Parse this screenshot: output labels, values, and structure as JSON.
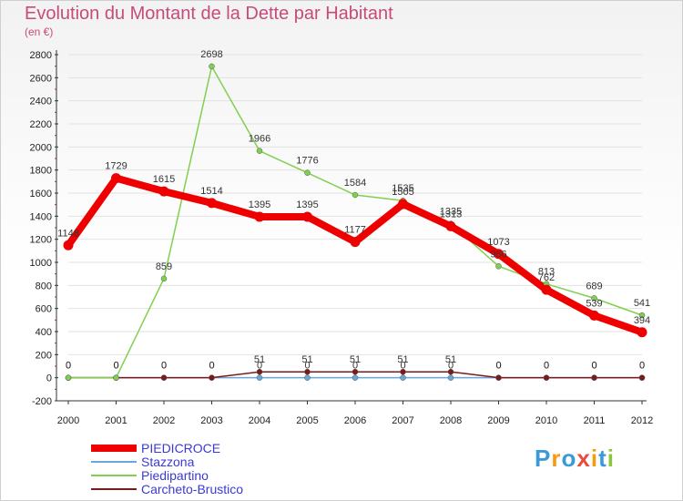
{
  "chart_data": {
    "type": "line",
    "title": "Evolution du Montant de la Dette par Habitant",
    "subtitle": "(en €)",
    "x": [
      "2000",
      "2001",
      "2002",
      "2003",
      "2004",
      "2005",
      "2006",
      "2007",
      "2008",
      "2009",
      "2010",
      "2011",
      "2012"
    ],
    "ylim": [
      -200,
      2800
    ],
    "yticks": [
      "-200",
      "0",
      "200",
      "400",
      "600",
      "800",
      "1000",
      "1200",
      "1400",
      "1600",
      "1800",
      "2000",
      "2200",
      "2400",
      "2600",
      "2800"
    ],
    "series": [
      {
        "name": "PIEDICROCE",
        "color": "#ee0000",
        "values": [
          1148,
          1729,
          1615,
          1514,
          1395,
          1395,
          1177,
          1505,
          1313,
          1073,
          762,
          539,
          394
        ],
        "labels": [
          "1148",
          "1729",
          "1615",
          "1514",
          "1395",
          "1395",
          "1177",
          "1505",
          "1313",
          "1073",
          "762",
          "539",
          "394"
        ]
      },
      {
        "name": "Stazzona",
        "color": "#6aa6d6",
        "values": [
          0,
          0,
          0,
          0,
          0,
          0,
          0,
          0,
          0,
          0,
          0,
          0,
          0
        ],
        "labels": [
          "0",
          "0",
          "0",
          "0",
          "0",
          "0",
          "0",
          "0",
          "0",
          "0",
          "0",
          "0",
          "0"
        ]
      },
      {
        "name": "Piedipartino",
        "color": "#80d050",
        "values": [
          0,
          0,
          859,
          2698,
          1966,
          1776,
          1584,
          1535,
          1335,
          966,
          813,
          689,
          541
        ],
        "labels": [
          "",
          "",
          "859",
          "2698",
          "1966",
          "1776",
          "1584",
          "1535",
          "1335",
          "966",
          "813",
          "689",
          "541"
        ]
      },
      {
        "name": "Carcheto-Brustico",
        "color": "#7a1a1a",
        "values": [
          0,
          0,
          0,
          0,
          51,
          51,
          51,
          51,
          51,
          0,
          0,
          0,
          0
        ],
        "labels": [
          "0",
          "0",
          "0",
          "0",
          "51",
          "51",
          "51",
          "51",
          "51",
          "0",
          "0",
          "0",
          "0"
        ]
      }
    ]
  },
  "logo": {
    "letters": [
      "P",
      "r",
      "o",
      "x",
      "i",
      "t",
      "i"
    ],
    "colors": [
      "#3a9ad9",
      "#f39c12",
      "#3a9ad9",
      "#e74c3c",
      "#f39c12",
      "#3a9ad9",
      "#8cc63f"
    ]
  }
}
